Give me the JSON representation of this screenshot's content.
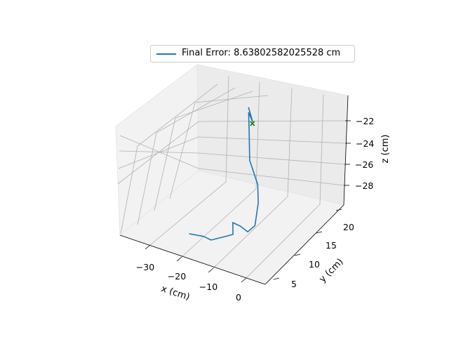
{
  "chart_data": {
    "type": "line3d",
    "xlabel": "x (cm)",
    "ylabel": "y (cm)",
    "zlabel": "z (cm)",
    "x_ticks": [
      "−30",
      "−20",
      "−10",
      "0"
    ],
    "y_ticks": [
      "5",
      "10",
      "15",
      "20"
    ],
    "z_ticks": [
      "−22",
      "−24",
      "−26",
      "−28"
    ],
    "legend": {
      "label": "Final Error: 8.63802582025528 cm",
      "placement": "top-center"
    },
    "series": [
      {
        "name": "Final Error: 8.63802582025528 cm",
        "color": "#1f77b4",
        "points": [
          [
            -20,
            6,
            -29.3
          ],
          [
            -17,
            7,
            -29.5
          ],
          [
            -15,
            7,
            -29.6
          ],
          [
            -13,
            9,
            -29.6
          ],
          [
            -11,
            9,
            -29.2
          ],
          [
            -12,
            10,
            -28.5
          ],
          [
            -11,
            11,
            -29.0
          ],
          [
            -9,
            11,
            -29.3
          ],
          [
            -8,
            12,
            -28.9
          ],
          [
            -9,
            14,
            -27.5
          ],
          [
            -10,
            15,
            -26.2
          ],
          [
            -12,
            15,
            -24.2
          ],
          [
            -14,
            17,
            -22.5
          ],
          [
            -15,
            18,
            -21.0
          ],
          [
            -14,
            18,
            -21.7
          ],
          [
            -15,
            18,
            -20.5
          ]
        ]
      }
    ],
    "target": {
      "x": -13,
      "y": 17,
      "z": -21.5,
      "marker": "x",
      "color": "#008000"
    },
    "grid": true
  }
}
